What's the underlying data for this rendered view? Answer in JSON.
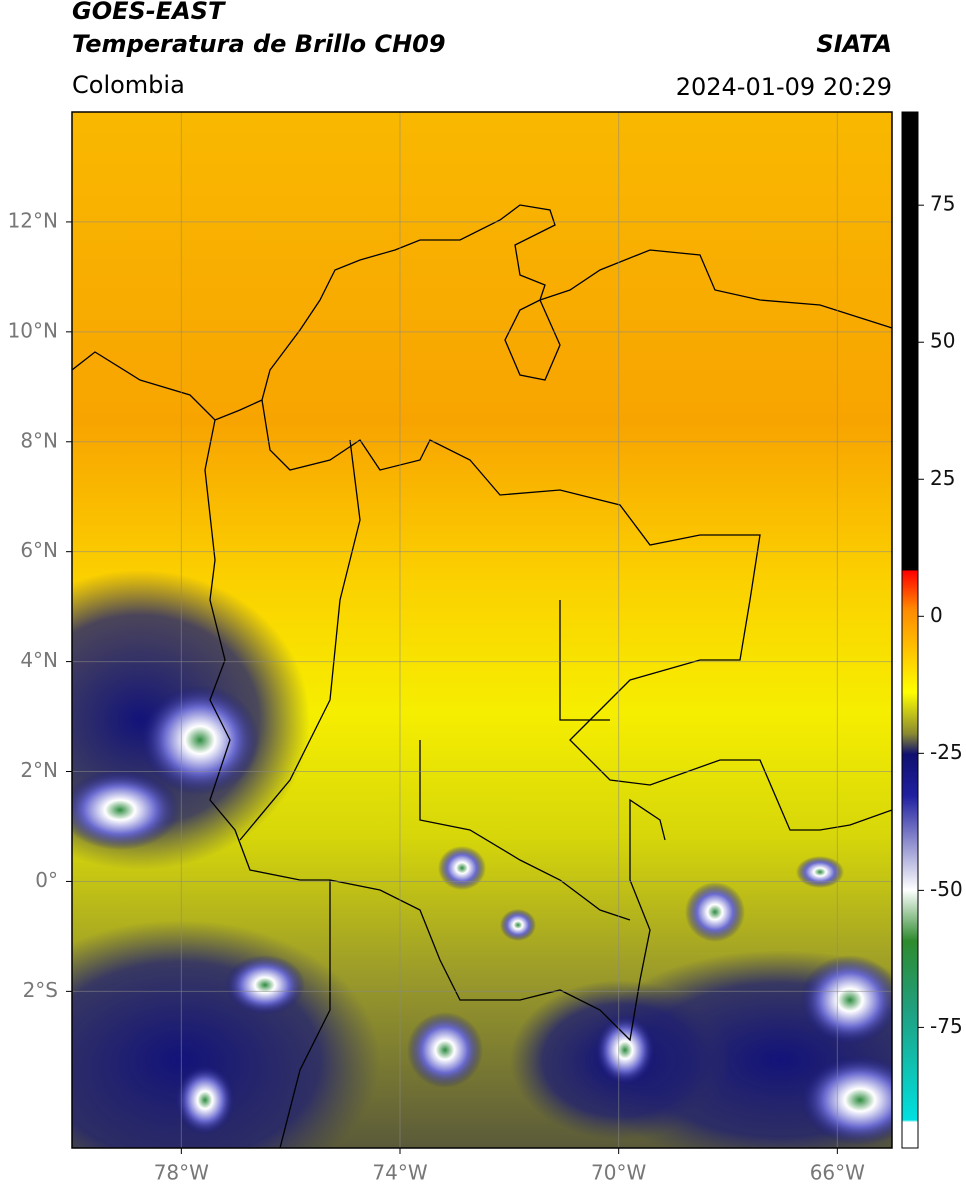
{
  "header": {
    "source": "GOES-EAST",
    "title": "Temperatura de Brillo CH09",
    "agency": "SIATA",
    "region": "Colombia",
    "datetime": "2024-01-09 20:29"
  },
  "map": {
    "xlim": [
      -80,
      -65
    ],
    "ylim": [
      -4.85,
      14
    ],
    "xticks": [
      {
        "value": -78,
        "label": "78°W"
      },
      {
        "value": -74,
        "label": "74°W"
      },
      {
        "value": -70,
        "label": "70°W"
      },
      {
        "value": -66,
        "label": "66°W"
      }
    ],
    "yticks": [
      {
        "value": 12,
        "label": "12°N"
      },
      {
        "value": 10,
        "label": "10°N"
      },
      {
        "value": 8,
        "label": "8°N"
      },
      {
        "value": 6,
        "label": "6°N"
      },
      {
        "value": 4,
        "label": "4°N"
      },
      {
        "value": 2,
        "label": "2°N"
      },
      {
        "value": 0,
        "label": "0°"
      },
      {
        "value": -2,
        "label": "2°S"
      }
    ]
  },
  "colorbar": {
    "ylim": [
      -97,
      92
    ],
    "yticks": [
      75,
      50,
      25,
      0,
      -25,
      -50,
      -75
    ]
  }
}
